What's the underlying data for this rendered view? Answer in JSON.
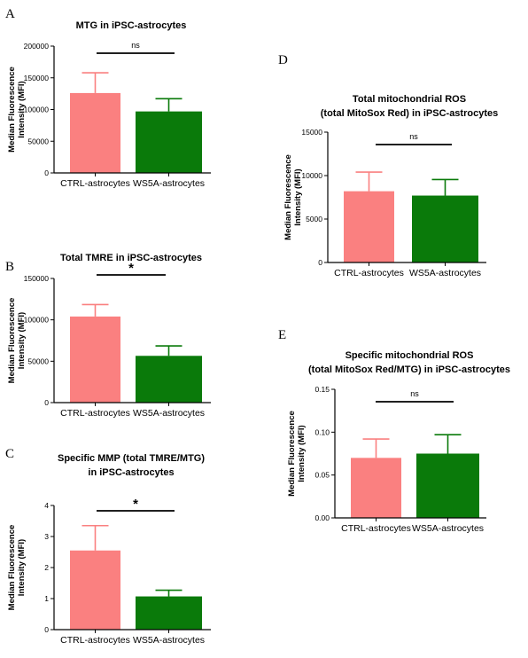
{
  "colors": {
    "ctrl": "#fa8080",
    "ws5a": "#0a7a0a",
    "axis": "#000000"
  },
  "chart_data": [
    {
      "panel": "A",
      "type": "bar",
      "title": [
        "MTG in iPSC-astrocytes"
      ],
      "ylabel": [
        "Median Fluorescence",
        "Intensity (MFI)"
      ],
      "categories": [
        "CTRL-astrocytes",
        "WS5A-astrocytes"
      ],
      "values": [
        126000,
        97000
      ],
      "errors": [
        32000,
        20000
      ],
      "ylim": [
        0,
        200000
      ],
      "yticks": [
        0,
        50000,
        100000,
        150000,
        200000
      ],
      "ytick_labels": [
        "0",
        "50000",
        "100000",
        "150000",
        "200000"
      ],
      "significance": "ns"
    },
    {
      "panel": "B",
      "type": "bar",
      "title": [
        "Total TMRE in iPSC-astrocytes"
      ],
      "ylabel": [
        "Median Fluorescence",
        "Intensity (MFI)"
      ],
      "categories": [
        "CTRL-astrocytes",
        "WS5A-astrocytes"
      ],
      "values": [
        104000,
        56500
      ],
      "errors": [
        14500,
        12000
      ],
      "ylim": [
        0,
        150000
      ],
      "yticks": [
        0,
        50000,
        100000,
        150000
      ],
      "ytick_labels": [
        "0",
        "50000",
        "100000",
        "150000"
      ],
      "significance": "*"
    },
    {
      "panel": "C",
      "type": "bar",
      "title": [
        "Specific MMP (total TMRE/MTG)",
        "in iPSC-astrocytes"
      ],
      "ylabel": [
        "Median Fluorescence",
        "Intensity (MFI)"
      ],
      "categories": [
        "CTRL-astrocytes",
        "WS5A-astrocytes"
      ],
      "values": [
        2.55,
        1.07
      ],
      "errors": [
        0.8,
        0.2
      ],
      "ylim": [
        0,
        4
      ],
      "yticks": [
        0,
        1,
        2,
        3,
        4
      ],
      "ytick_labels": [
        "0",
        "1",
        "2",
        "3",
        "4"
      ],
      "significance": "*"
    },
    {
      "panel": "D",
      "type": "bar",
      "title": [
        "Total mitochondrial ROS",
        "(total MitoSox Red) in iPSC-astrocytes"
      ],
      "ylabel": [
        "Median Fluorescence",
        "Intensity (MFI)"
      ],
      "categories": [
        "CTRL-astrocytes",
        "WS5A-astrocytes"
      ],
      "values": [
        8200,
        7700
      ],
      "errors": [
        2200,
        1850
      ],
      "ylim": [
        0,
        15000
      ],
      "yticks": [
        0,
        5000,
        10000,
        15000
      ],
      "ytick_labels": [
        "0",
        "5000",
        "10000",
        "15000"
      ],
      "significance": "ns"
    },
    {
      "panel": "E",
      "type": "bar",
      "title": [
        "Specific mitochondrial ROS",
        "(total MitoSox Red/MTG) in iPSC-astrocytes"
      ],
      "ylabel": [
        "Median Fluorescence",
        "Intensity (MFI)"
      ],
      "categories": [
        "CTRL-astrocytes",
        "WS5A-astrocytes"
      ],
      "values": [
        0.07,
        0.075
      ],
      "errors": [
        0.022,
        0.022
      ],
      "ylim": [
        0,
        0.15
      ],
      "yticks": [
        0,
        0.05,
        0.1,
        0.15
      ],
      "ytick_labels": [
        "0.00",
        "0.05",
        "0.10",
        "0.15"
      ],
      "significance": "ns"
    }
  ]
}
